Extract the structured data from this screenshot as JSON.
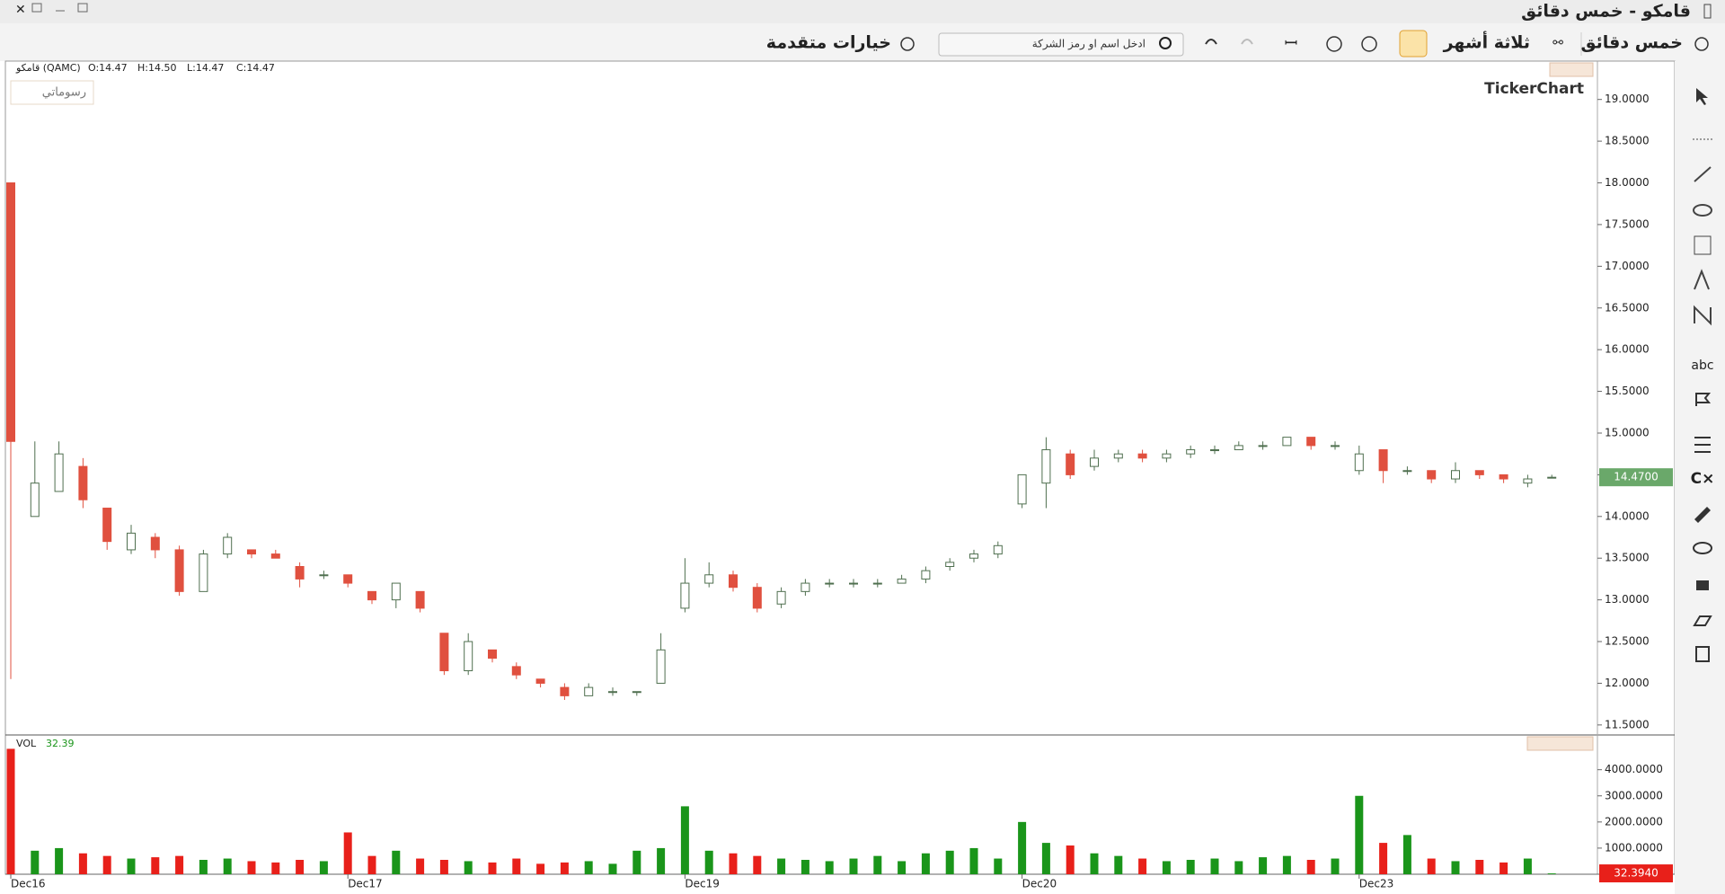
{
  "window": {
    "title": "قامكو - خمس دقائق"
  },
  "toolbar": {
    "interval": "خمس دقائق",
    "period": "ثلاثة أشهر",
    "search_placeholder": "ادخل اسم او رمز الشركة",
    "advanced": "خيارات متقدمة"
  },
  "chart_header": {
    "symbol": "قامكو (QAMC)",
    "ohlc": [
      "O:14.47",
      "H:14.50",
      "L:14.47",
      "C:14.47"
    ],
    "drawings": "رسوماتي",
    "brand": "TickerChart"
  },
  "chart_data": [
    {
      "type": "candlestick",
      "categories": [
        "Dec16",
        null,
        null,
        null,
        null,
        null,
        null,
        null,
        null,
        null,
        null,
        null,
        null,
        null,
        "Dec17",
        null,
        null,
        null,
        null,
        null,
        null,
        null,
        null,
        null,
        null,
        null,
        null,
        null,
        "Dec19",
        null,
        null,
        null,
        null,
        null,
        null,
        null,
        null,
        null,
        null,
        null,
        null,
        null,
        "Dec20",
        null,
        null,
        null,
        null,
        null,
        null,
        null,
        null,
        null,
        null,
        null,
        null,
        null,
        "Dec23",
        null,
        null,
        null,
        null,
        null,
        null,
        null,
        null
      ],
      "open": [
        18.0,
        14.0,
        14.3,
        14.6,
        14.1,
        13.6,
        13.75,
        13.6,
        13.1,
        13.55,
        13.6,
        13.55,
        13.4,
        13.3,
        13.3,
        13.1,
        13.0,
        13.1,
        12.6,
        12.15,
        12.4,
        12.2,
        12.05,
        11.95,
        11.85,
        11.9,
        11.9,
        12.0,
        12.9,
        13.2,
        13.3,
        13.15,
        12.95,
        13.1,
        13.2,
        13.2,
        13.2,
        13.2,
        13.25,
        13.4,
        13.5,
        13.55,
        14.15,
        14.4,
        14.75,
        14.6,
        14.7,
        14.75,
        14.7,
        14.75,
        14.8,
        14.8,
        14.85,
        14.85,
        14.95,
        14.85,
        14.55,
        14.8,
        14.55,
        14.55,
        14.45,
        14.55,
        14.5,
        14.4,
        14.47
      ],
      "high": [
        18.0,
        14.9,
        14.9,
        14.7,
        14.1,
        13.9,
        13.8,
        13.65,
        13.6,
        13.8,
        13.6,
        13.6,
        13.45,
        13.35,
        13.3,
        13.1,
        13.2,
        13.1,
        12.6,
        12.6,
        12.4,
        12.25,
        12.05,
        12.0,
        12.0,
        11.95,
        11.9,
        12.6,
        13.5,
        13.45,
        13.35,
        13.2,
        13.15,
        13.25,
        13.25,
        13.25,
        13.25,
        13.3,
        13.4,
        13.5,
        13.6,
        13.7,
        14.5,
        14.95,
        14.8,
        14.8,
        14.8,
        14.8,
        14.8,
        14.85,
        14.85,
        14.9,
        14.9,
        14.95,
        14.95,
        14.9,
        14.85,
        14.8,
        14.6,
        14.55,
        14.65,
        14.55,
        14.5,
        14.5,
        14.5
      ],
      "low": [
        12.05,
        14.0,
        14.3,
        14.1,
        13.6,
        13.55,
        13.5,
        13.05,
        13.1,
        13.5,
        13.5,
        13.5,
        13.15,
        13.25,
        13.15,
        12.95,
        12.9,
        12.85,
        12.1,
        12.1,
        12.25,
        12.05,
        11.95,
        11.8,
        11.85,
        11.85,
        11.85,
        12.0,
        12.85,
        13.15,
        13.1,
        12.85,
        12.9,
        13.05,
        13.15,
        13.15,
        13.15,
        13.2,
        13.2,
        13.35,
        13.45,
        13.5,
        14.1,
        14.1,
        14.45,
        14.55,
        14.65,
        14.65,
        14.65,
        14.7,
        14.75,
        14.8,
        14.8,
        14.85,
        14.8,
        14.8,
        14.5,
        14.4,
        14.5,
        14.4,
        14.4,
        14.45,
        14.4,
        14.35,
        14.47
      ],
      "close": [
        14.9,
        14.4,
        14.75,
        14.2,
        13.7,
        13.8,
        13.6,
        13.1,
        13.55,
        13.75,
        13.55,
        13.5,
        13.25,
        13.3,
        13.2,
        13.0,
        13.2,
        12.9,
        12.15,
        12.5,
        12.3,
        12.1,
        12.0,
        11.85,
        11.95,
        11.9,
        11.9,
        12.4,
        13.2,
        13.3,
        13.15,
        12.9,
        13.1,
        13.2,
        13.2,
        13.2,
        13.2,
        13.25,
        13.35,
        13.45,
        13.55,
        13.65,
        14.5,
        14.8,
        14.5,
        14.7,
        14.75,
        14.7,
        14.75,
        14.8,
        14.8,
        14.85,
        14.85,
        14.95,
        14.85,
        14.85,
        14.75,
        14.55,
        14.55,
        14.45,
        14.55,
        14.5,
        14.45,
        14.45,
        14.47
      ],
      "up_color": "#ffffff",
      "up_border": "#4f6f4f",
      "down_color": "#e0503f",
      "ylim": [
        11.38,
        19.46
      ],
      "yticks": [
        {
          "value": 11.5,
          "label": "11.5000"
        },
        {
          "value": 12,
          "label": "12.0000"
        },
        {
          "value": 12.5,
          "label": "12.5000"
        },
        {
          "value": 13,
          "label": "13.0000"
        },
        {
          "value": 13.5,
          "label": "13.5000"
        },
        {
          "value": 14,
          "label": "14.0000"
        },
        {
          "value": 14.5,
          "label": "14.5000"
        },
        {
          "value": 15,
          "label": "15.0000"
        },
        {
          "value": 15.5,
          "label": "15.5000"
        },
        {
          "value": 16,
          "label": "16.0000"
        },
        {
          "value": 16.5,
          "label": "16.5000"
        },
        {
          "value": 17,
          "label": "17.0000"
        },
        {
          "value": 17.5,
          "label": "17.5000"
        },
        {
          "value": 18,
          "label": "18.0000"
        },
        {
          "value": 18.5,
          "label": "18.5000"
        },
        {
          "value": 19,
          "label": "19.0000"
        }
      ],
      "last": {
        "value": 14.47,
        "label": "14.4700"
      },
      "last_color": "#6aa86a"
    },
    {
      "type": "bar",
      "title": "VOL",
      "legend_value": "32.39",
      "values": [
        4800,
        900,
        1000,
        800,
        700,
        600,
        650,
        700,
        550,
        600,
        500,
        450,
        550,
        500,
        1600,
        700,
        900,
        600,
        550,
        500,
        450,
        600,
        400,
        450,
        500,
        400,
        900,
        1000,
        2600,
        900,
        800,
        700,
        600,
        550,
        500,
        600,
        700,
        500,
        800,
        900,
        1000,
        600,
        2000,
        1200,
        1100,
        800,
        700,
        600,
        500,
        550,
        600,
        500,
        650,
        700,
        550,
        600,
        3000,
        1200,
        1500,
        600,
        500,
        550,
        450,
        600,
        32.394
      ],
      "up_color": "#1a951a",
      "down_color": "#e8201a",
      "ylim": [
        0,
        5330
      ],
      "yticks": [
        {
          "value": 1000,
          "label": "1000.0000"
        },
        {
          "value": 2000,
          "label": "2000.0000"
        },
        {
          "value": 3000,
          "label": "3000.0000"
        },
        {
          "value": 4000,
          "label": "4000.0000"
        }
      ],
      "last": {
        "value": 32.394,
        "label": "32.3940"
      },
      "last_color": "#e8201a"
    }
  ]
}
